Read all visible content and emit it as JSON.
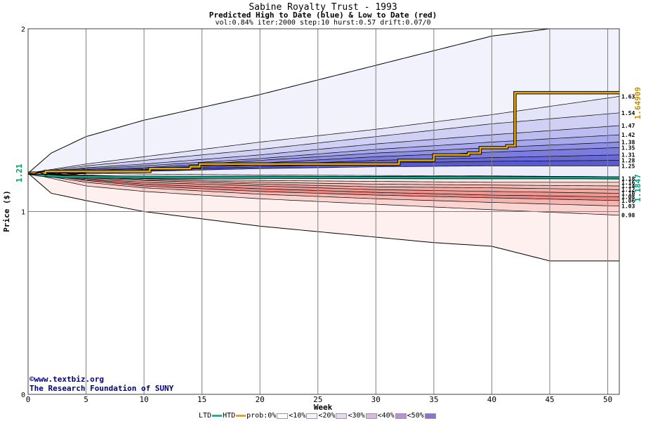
{
  "chart_data": {
    "type": "area",
    "title": "Sabine Royalty Trust - 1993",
    "subtitle": "Predicted High to Date (blue) &  Low to Date (red)",
    "params": "vol:0.84% iter:2000 step:10 hurst:0.57 drift:0.07/0",
    "xlabel": "Week",
    "ylabel": "Price ($)",
    "xlim": [
      0,
      51
    ],
    "ylim": [
      0,
      2
    ],
    "x_ticks": [
      "0",
      "5",
      "10",
      "15",
      "20",
      "25",
      "30",
      "35",
      "40",
      "45",
      "50"
    ],
    "y_ticks": [
      "0",
      "1",
      "2"
    ],
    "start_price_label": "1.21",
    "start_price": 1.21,
    "high_value_label": "1.64909",
    "low_value_label": "1.1847",
    "high_band_curves": [
      {
        "w": [
          0,
          2,
          5,
          10,
          15,
          20,
          25,
          30,
          35,
          40,
          45,
          51
        ],
        "p": [
          1.21,
          1.32,
          1.41,
          1.5,
          1.57,
          1.64,
          1.72,
          1.8,
          1.88,
          1.96,
          2.0,
          2.0
        ]
      },
      {
        "w": [
          0,
          5,
          10,
          20,
          30,
          40,
          51
        ],
        "p": [
          1.21,
          1.26,
          1.3,
          1.38,
          1.45,
          1.53,
          1.63
        ]
      },
      {
        "w": [
          0,
          5,
          10,
          20,
          30,
          40,
          51
        ],
        "p": [
          1.21,
          1.25,
          1.28,
          1.34,
          1.41,
          1.48,
          1.54
        ]
      },
      {
        "w": [
          0,
          5,
          10,
          20,
          30,
          40,
          51
        ],
        "p": [
          1.21,
          1.24,
          1.26,
          1.31,
          1.37,
          1.42,
          1.47
        ]
      },
      {
        "w": [
          0,
          5,
          10,
          20,
          30,
          40,
          51
        ],
        "p": [
          1.21,
          1.235,
          1.25,
          1.29,
          1.34,
          1.38,
          1.42
        ]
      },
      {
        "w": [
          0,
          5,
          10,
          20,
          30,
          40,
          51
        ],
        "p": [
          1.21,
          1.23,
          1.24,
          1.28,
          1.32,
          1.35,
          1.38
        ]
      },
      {
        "w": [
          0,
          5,
          10,
          20,
          30,
          40,
          51
        ],
        "p": [
          1.21,
          1.225,
          1.235,
          1.265,
          1.3,
          1.325,
          1.35
        ]
      },
      {
        "w": [
          0,
          5,
          10,
          20,
          30,
          40,
          51
        ],
        "p": [
          1.21,
          1.22,
          1.23,
          1.255,
          1.28,
          1.295,
          1.31
        ]
      },
      {
        "w": [
          0,
          5,
          10,
          20,
          30,
          40,
          51
        ],
        "p": [
          1.21,
          1.215,
          1.225,
          1.245,
          1.265,
          1.275,
          1.28
        ]
      },
      {
        "w": [
          0,
          5,
          10,
          20,
          30,
          40,
          51
        ],
        "p": [
          1.21,
          1.212,
          1.22,
          1.235,
          1.245,
          1.25,
          1.25
        ]
      },
      {
        "w": [
          0,
          5,
          10,
          20,
          30,
          40,
          51
        ],
        "p": [
          1.21,
          1.208,
          1.205,
          1.2,
          1.197,
          1.195,
          1.19
        ]
      }
    ],
    "low_band_curves": [
      {
        "w": [
          0,
          5,
          10,
          20,
          30,
          40,
          51
        ],
        "p": [
          1.21,
          1.2,
          1.19,
          1.185,
          1.183,
          1.182,
          1.18
        ]
      },
      {
        "w": [
          0,
          5,
          10,
          20,
          30,
          40,
          51
        ],
        "p": [
          1.21,
          1.195,
          1.18,
          1.17,
          1.165,
          1.16,
          1.16
        ]
      },
      {
        "w": [
          0,
          5,
          10,
          20,
          30,
          40,
          51
        ],
        "p": [
          1.21,
          1.19,
          1.175,
          1.16,
          1.15,
          1.145,
          1.14
        ]
      },
      {
        "w": [
          0,
          5,
          10,
          20,
          30,
          40,
          51
        ],
        "p": [
          1.21,
          1.185,
          1.17,
          1.15,
          1.135,
          1.13,
          1.12
        ]
      },
      {
        "w": [
          0,
          5,
          10,
          20,
          30,
          40,
          51
        ],
        "p": [
          1.21,
          1.18,
          1.16,
          1.14,
          1.12,
          1.11,
          1.1
        ]
      },
      {
        "w": [
          0,
          5,
          10,
          20,
          30,
          40,
          51
        ],
        "p": [
          1.21,
          1.175,
          1.15,
          1.125,
          1.105,
          1.09,
          1.08
        ]
      },
      {
        "w": [
          0,
          5,
          10,
          20,
          30,
          40,
          51
        ],
        "p": [
          1.21,
          1.17,
          1.14,
          1.11,
          1.09,
          1.075,
          1.06
        ]
      },
      {
        "w": [
          0,
          5,
          10,
          20,
          30,
          40,
          51
        ],
        "p": [
          1.21,
          1.16,
          1.13,
          1.095,
          1.07,
          1.05,
          1.03
        ]
      },
      {
        "w": [
          0,
          5,
          10,
          20,
          30,
          40,
          51
        ],
        "p": [
          1.21,
          1.14,
          1.11,
          1.07,
          1.04,
          1.01,
          0.98
        ]
      },
      {
        "w": [
          0,
          2,
          5,
          10,
          15,
          20,
          25,
          30,
          35,
          40,
          45,
          51
        ],
        "p": [
          1.21,
          1.1,
          1.06,
          1.0,
          0.96,
          0.92,
          0.89,
          0.86,
          0.83,
          0.81,
          0.73,
          0.73
        ]
      }
    ],
    "band_fills": [
      "#f2f2fc",
      "#e2e2f8",
      "#c8c8f2",
      "#a8a8ec",
      "#8686e2",
      "#6c6cd8",
      "#5656cc"
    ],
    "low_band_fills": [
      "#fdf0ef",
      "#fbdcda",
      "#f8c8c4",
      "#f4b0ac",
      "#f09894",
      "#eb8480"
    ],
    "right_labels_high": [
      "1.63",
      "1.54",
      "1.47",
      "1.42",
      "1.38",
      "1.35",
      "1.31",
      "1.28",
      "1.25"
    ],
    "right_labels_high_values": [
      1.63,
      1.54,
      1.47,
      1.42,
      1.38,
      1.35,
      1.31,
      1.28,
      1.25
    ],
    "right_labels_low": [
      "1.18",
      "1.16",
      "1.14",
      "1.12",
      "1.10",
      "1.08",
      "1.06",
      "1.03",
      "0.98"
    ],
    "right_labels_low_values": [
      1.18,
      1.16,
      1.14,
      1.12,
      1.1,
      1.08,
      1.06,
      1.03,
      0.98
    ],
    "htd_series": {
      "name": "HTD",
      "color": "#e8a800",
      "w": [
        0,
        1.5,
        10,
        10.5,
        14,
        14.8,
        30.5,
        32,
        35,
        38,
        39,
        40.5,
        41.3,
        42,
        51
      ],
      "p": [
        1.21,
        1.22,
        1.22,
        1.235,
        1.245,
        1.26,
        1.26,
        1.28,
        1.31,
        1.32,
        1.35,
        1.35,
        1.36,
        1.65,
        1.65
      ]
    },
    "ltd_series": {
      "name": "LTD",
      "color": "#00c0a0",
      "w": [
        0,
        1,
        2,
        3,
        10,
        20,
        30,
        40,
        48,
        51
      ],
      "p": [
        1.21,
        1.2,
        1.195,
        1.19,
        1.188,
        1.187,
        1.186,
        1.185,
        1.185,
        1.184
      ]
    },
    "price_path": {
      "w": [
        0,
        0.5,
        1,
        1.5,
        2,
        2.5,
        3,
        3.5,
        4,
        4.5,
        5
      ],
      "p": [
        1.21,
        1.205,
        1.215,
        1.2,
        1.21,
        1.203,
        1.212,
        1.208,
        1.205,
        1.209,
        1.207
      ]
    }
  },
  "credit": {
    "line1": "www.textbiz.org",
    "line2": "The Research Foundation of SUNY",
    "copyright": "©"
  },
  "legend": {
    "ltd": "LTD",
    "htd": "HTD",
    "prob0": "prob:0%",
    "lt10": "<10%",
    "lt20": "<20%",
    "lt30": "<30%",
    "lt40": "<40%",
    "lt50": "<50%",
    "colors": {
      "ltd": "#00c0a0",
      "htd": "#e8a800",
      "c0": "#ffffff",
      "c10": "#f2f2fc",
      "c20": "#e8d8f0",
      "c30": "#d8b8e4",
      "c40": "#b890d8",
      "c50": "#9070d0"
    }
  }
}
